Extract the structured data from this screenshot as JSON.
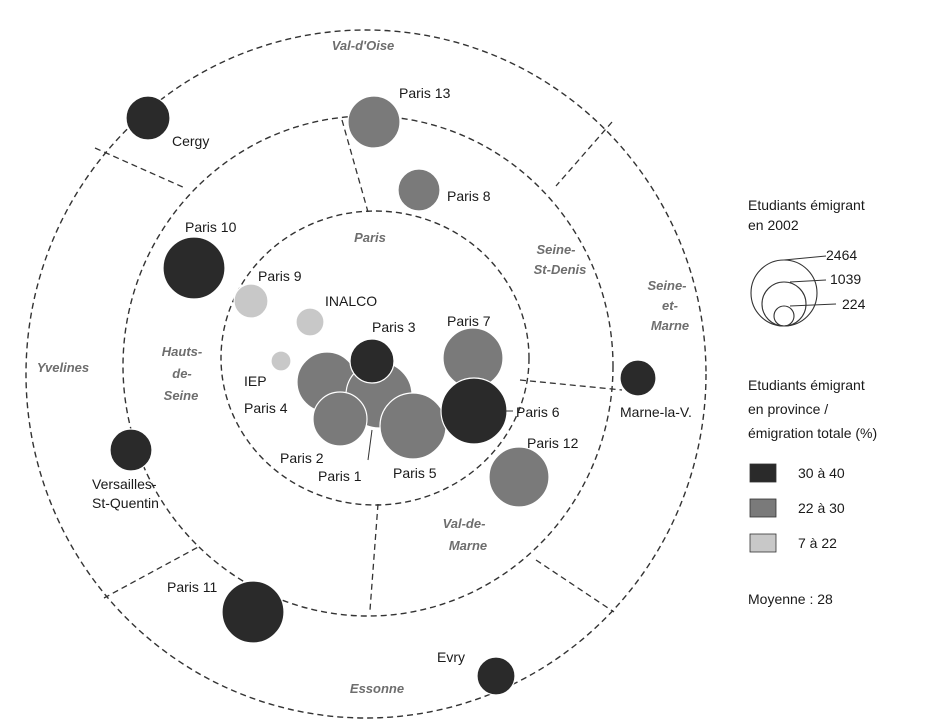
{
  "colors": {
    "class_dark": "#2a2a2a",
    "class_mid": "#7a7a7a",
    "class_light": "#c8c8c8"
  },
  "zones": {
    "val_oise": "Val-d'Oise",
    "paris": "Paris",
    "seine_st_denis_1": "Seine-",
    "seine_st_denis_2": "St-Denis",
    "seine_et_marne_1": "Seine-",
    "seine_et_marne_2": "et-",
    "seine_et_marne_3": "Marne",
    "hauts_de_seine_1": "Hauts-",
    "hauts_de_seine_2": "de-",
    "hauts_de_seine_3": "Seine",
    "yvelines": "Yvelines",
    "val_de_marne_1": "Val-de-",
    "val_de_marne_2": "Marne",
    "essonne": "Essonne"
  },
  "universities": [
    {
      "id": "cergy",
      "label": "Cergy",
      "class": "dark",
      "size": "medium"
    },
    {
      "id": "paris13",
      "label": "Paris 13",
      "class": "mid",
      "size": "medium"
    },
    {
      "id": "paris8",
      "label": "Paris 8",
      "class": "mid",
      "size": "small"
    },
    {
      "id": "paris10",
      "label": "Paris 10",
      "class": "dark",
      "size": "large"
    },
    {
      "id": "paris9",
      "label": "Paris 9",
      "class": "light",
      "size": "small"
    },
    {
      "id": "inalco",
      "label": "INALCO",
      "class": "light",
      "size": "small"
    },
    {
      "id": "paris3",
      "label": "Paris 3",
      "class": "dark",
      "size": "medium"
    },
    {
      "id": "paris7",
      "label": "Paris 7",
      "class": "mid",
      "size": "large"
    },
    {
      "id": "iep",
      "label": "IEP",
      "class": "light",
      "size": "small"
    },
    {
      "id": "paris4",
      "label": "Paris 4",
      "class": "mid",
      "size": "large"
    },
    {
      "id": "paris2",
      "label": "Paris 2",
      "class": "mid",
      "size": "large"
    },
    {
      "id": "paris1",
      "label": "Paris 1",
      "class": "mid",
      "size": "large"
    },
    {
      "id": "paris5",
      "label": "Paris 5",
      "class": "mid",
      "size": "large"
    },
    {
      "id": "paris6",
      "label": "Paris 6",
      "class": "dark",
      "size": "large"
    },
    {
      "id": "paris12",
      "label": "Paris 12",
      "class": "mid",
      "size": "large"
    },
    {
      "id": "marne",
      "label": "Marne-la-V.",
      "class": "dark",
      "size": "small"
    },
    {
      "id": "versailles1",
      "label": "Versailles-",
      "class": "dark",
      "size": "medium"
    },
    {
      "id": "versailles2",
      "label": "St-Quentin"
    },
    {
      "id": "paris11",
      "label": "Paris 11",
      "class": "dark",
      "size": "large"
    },
    {
      "id": "evry",
      "label": "Evry",
      "class": "dark",
      "size": "medium"
    }
  ],
  "legend": {
    "size_title_1": "Etudiants émigrant",
    "size_title_2": "en 2002",
    "size_values": [
      "2464",
      "1039",
      "224"
    ],
    "class_title_1": "Etudiants émigrant",
    "class_title_2": "en province /",
    "class_title_3": "émigration totale (%)",
    "classes": [
      {
        "label": "30 à 40",
        "color": "#2a2a2a"
      },
      {
        "label": "22 à 30",
        "color": "#7a7a7a"
      },
      {
        "label": "7 à 22",
        "color": "#c8c8c8"
      }
    ],
    "average": "Moyenne : 28"
  }
}
